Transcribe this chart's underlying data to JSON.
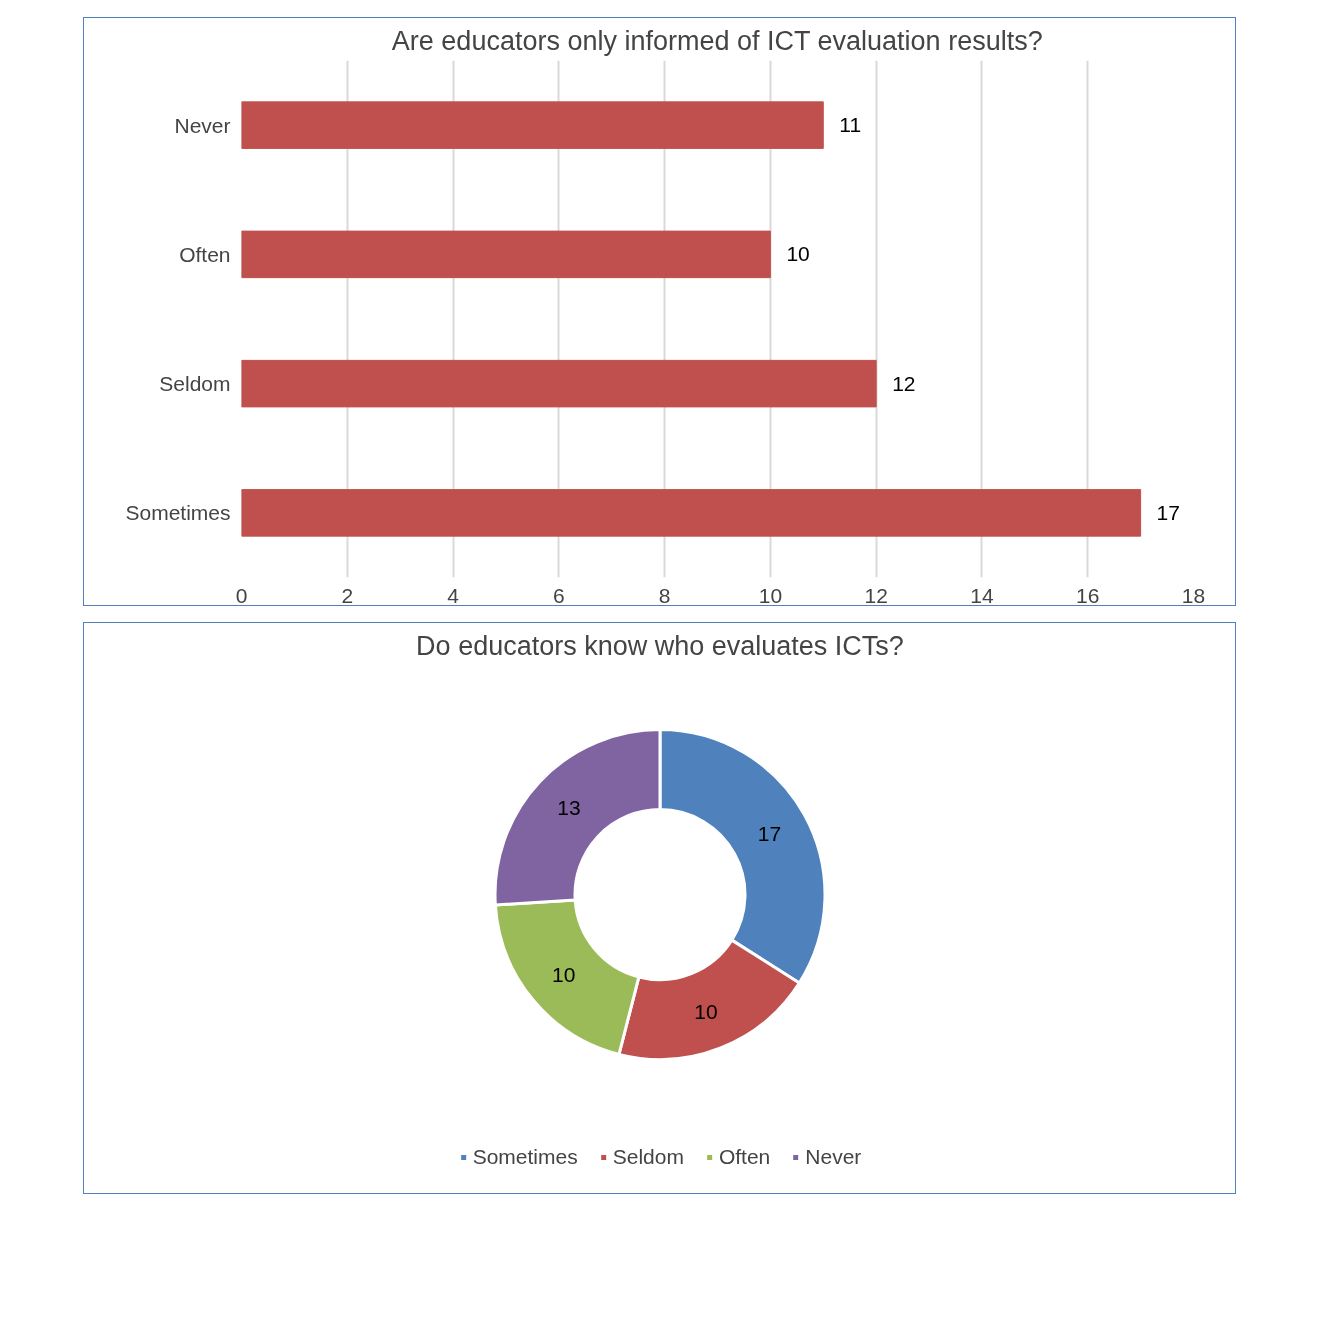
{
  "chart_data": [
    {
      "type": "bar",
      "title": "Are educators only informed of ICT evaluation results?",
      "orientation": "horizontal",
      "categories": [
        "Never",
        "Often",
        "Seldom",
        "Sometimes"
      ],
      "values": [
        11,
        10,
        12,
        17
      ],
      "color": "#c0504d",
      "xlim": [
        0,
        18
      ],
      "xticks": [
        0,
        2,
        4,
        6,
        8,
        10,
        12,
        14,
        16,
        18
      ],
      "grid": "x",
      "data_labels": true
    },
    {
      "type": "donut",
      "title": "Do educators know who evaluates ICTs?",
      "categories": [
        "Sometimes",
        "Seldom",
        "Often",
        "Never"
      ],
      "values": [
        17,
        10,
        10,
        13
      ],
      "colors": [
        "#4f81bd",
        "#c0504d",
        "#9bbb59",
        "#8064a2"
      ],
      "legend": "bottom",
      "data_labels": true
    }
  ]
}
